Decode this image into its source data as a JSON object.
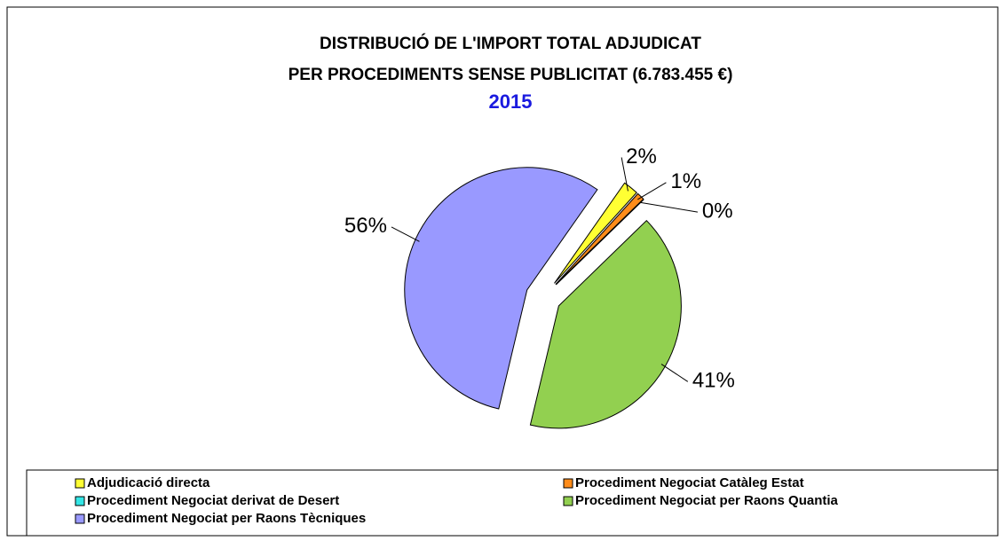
{
  "chart_data": {
    "type": "pie",
    "title": [
      "DISTRIBUCIÓ DE L'IMPORT TOTAL ADJUDICAT",
      "PER PROCEDIMENTS SENSE PUBLICITAT (6.783.455 €)"
    ],
    "subtitle": "2015",
    "categories": [
      "Adjudicació directa",
      "Procediment Negociat Catàleg Estat",
      "Procediment Negociat derivat de Desert",
      "Procediment Negociat per Raons Quantia",
      "Procediment Negociat per Raons Tècniques"
    ],
    "values": [
      2,
      1,
      0,
      41,
      56
    ],
    "value_labels": [
      "2%",
      "1%",
      "0%",
      "41%",
      "56%"
    ],
    "colors": [
      "#ffff33",
      "#ff8c1a",
      "#33e6e6",
      "#92d050",
      "#9999ff"
    ],
    "legend": "bottom"
  }
}
